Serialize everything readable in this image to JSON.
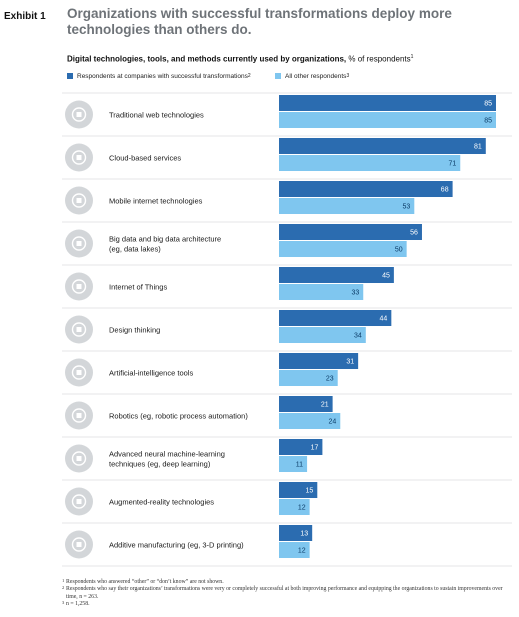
{
  "exhibit_label": "Exhibit 1",
  "title": "Organizations with successful transformations deploy more technologies than others do.",
  "subtitle": {
    "bold": "Digital technologies, tools, and methods currently used by organizations,",
    "normal": " % of respondents",
    "sup": "1"
  },
  "legend": [
    {
      "label": "Respondents at companies with successful transformations",
      "sup": "2",
      "color": "#2b6cb0"
    },
    {
      "label": "All other respondents",
      "sup": "3",
      "color": "#7fc6ef"
    }
  ],
  "footnotes": [
    {
      "sup": "1",
      "text": "Respondents who answered “other” or “don’t know” are not shown."
    },
    {
      "sup": "2",
      "text": "Respondents who say their organizations’ transformations were very or completely successful at both improving performance and equipping the organizations to sustain improvements over time, n = 263."
    },
    {
      "sup": "3",
      "text": "n = 1,258."
    }
  ],
  "chart_data": {
    "type": "bar",
    "orientation": "horizontal",
    "categories": [
      [
        "Traditional web technologies"
      ],
      [
        "Cloud-based services"
      ],
      [
        "Mobile internet technologies"
      ],
      [
        "Big data and big data architecture",
        "(eg, data lakes)"
      ],
      [
        "Internet of Things"
      ],
      [
        "Design thinking"
      ],
      [
        "Artificial-intelligence tools"
      ],
      [
        "Robotics (eg, robotic process automation)"
      ],
      [
        "Advanced neural machine-learning",
        "techniques (eg, deep learning)"
      ],
      [
        "Augmented-reality technologies"
      ],
      [
        "Additive manufacturing (eg, 3-D printing)"
      ]
    ],
    "icons": [
      "web-browser-icon",
      "cloud-icon",
      "mobile-phone-icon",
      "server-stack-icon",
      "connected-device-icon",
      "head-lightbulb-icon",
      "brain-circuit-icon",
      "robot-arm-icon",
      "neural-brain-icon",
      "ar-headset-icon",
      "3d-printer-icon"
    ],
    "series": [
      {
        "name": "Respondents at companies with successful transformations",
        "color": "#2b6cb0",
        "values": [
          85,
          81,
          68,
          56,
          45,
          44,
          31,
          21,
          17,
          15,
          13
        ]
      },
      {
        "name": "All other respondents",
        "color": "#7fc6ef",
        "values": [
          85,
          71,
          53,
          50,
          33,
          34,
          23,
          24,
          11,
          12,
          12
        ]
      }
    ],
    "xlim": [
      0,
      85
    ]
  }
}
